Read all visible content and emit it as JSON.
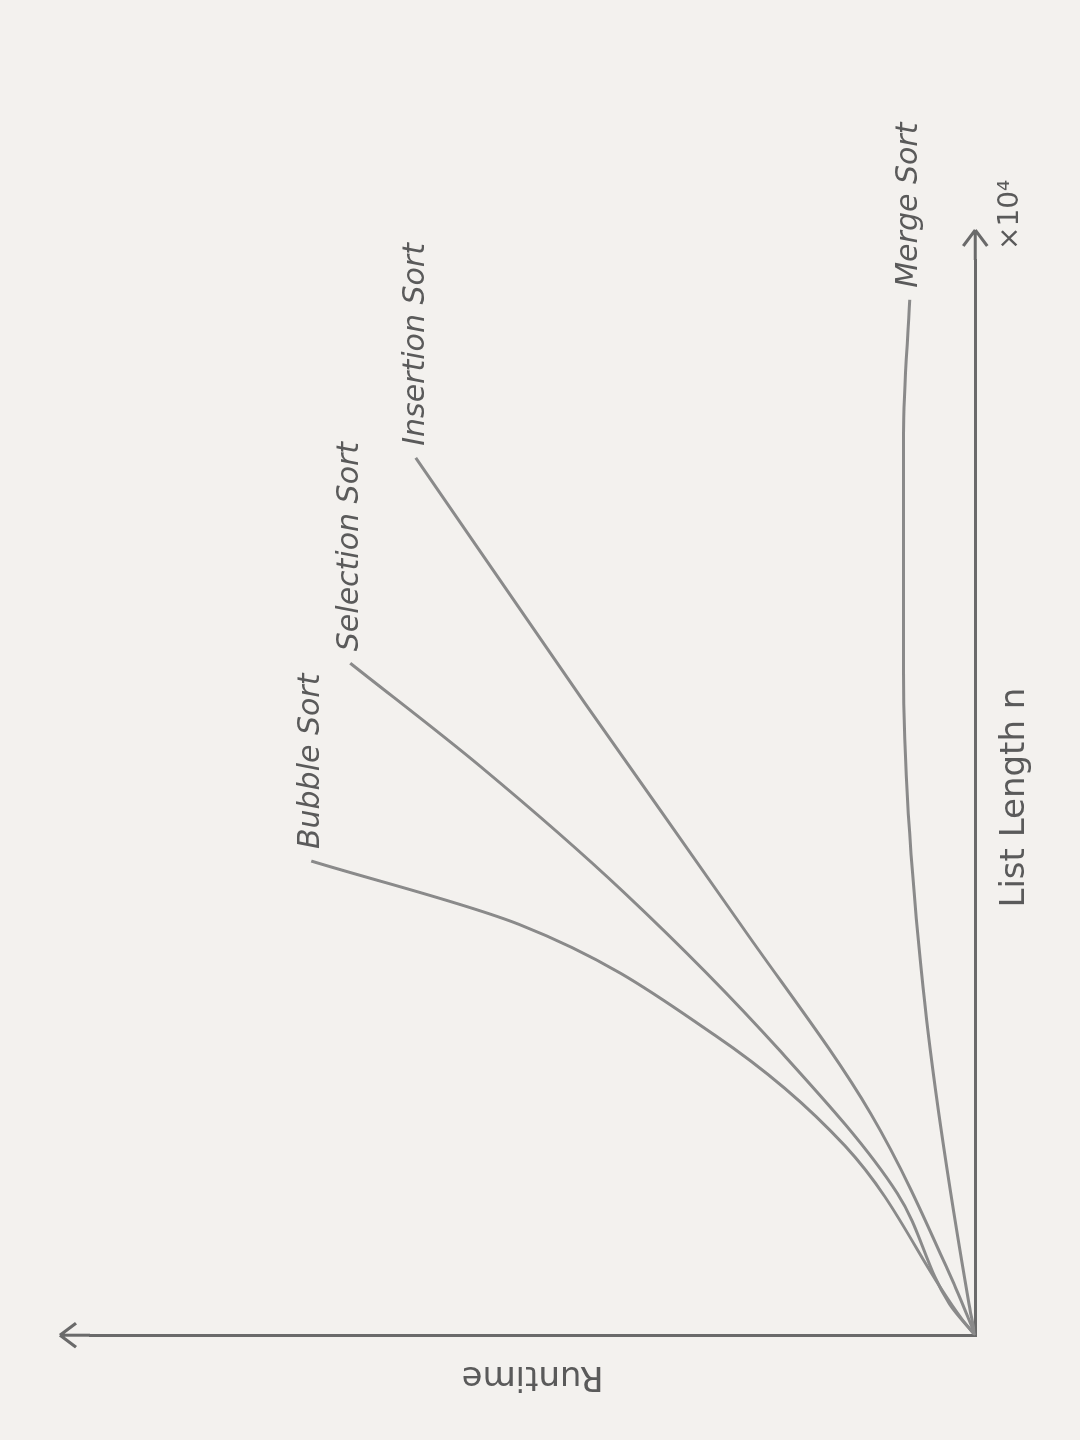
{
  "chart_data": {
    "type": "line",
    "x_label": "List Length n",
    "y_label": "Runtime",
    "annotations": [
      "×10⁴"
    ],
    "xlim": [
      0,
      10
    ],
    "xticks": [],
    "ylim": [
      0,
      10
    ],
    "yticks": [],
    "grid": false,
    "tick_labels": false,
    "series": [
      {
        "name": "Bubble Sort",
        "color": "#8a8a8a",
        "x": [
          0,
          0.15,
          1.76,
          2.79,
          3.82,
          4.41
        ],
        "values": [
          0,
          0.15,
          1.47,
          2.94,
          5.15,
          7.5
        ]
      },
      {
        "name": "Selection Sort",
        "color": "#8a8a8a",
        "x": [
          0,
          0.29,
          1.32,
          2.65,
          4.12,
          5.29,
          6.25
        ],
        "values": [
          0,
          0.29,
          0.88,
          2.21,
          3.97,
          5.59,
          7.06
        ]
      },
      {
        "name": "Insertion Sort",
        "color": "#8a8a8a",
        "x": [
          0,
          0.44,
          2.06,
          3.82,
          5.88,
          8.16
        ],
        "values": [
          0,
          0.22,
          1.18,
          2.65,
          4.41,
          6.32
        ]
      },
      {
        "name": "Merge Sort",
        "color": "#8a8a8a",
        "x": [
          0,
          0.29,
          3.24,
          6.18,
          8.38,
          9.63
        ],
        "values": [
          0,
          0.07,
          0.59,
          0.81,
          0.81,
          0.74
        ]
      }
    ]
  }
}
